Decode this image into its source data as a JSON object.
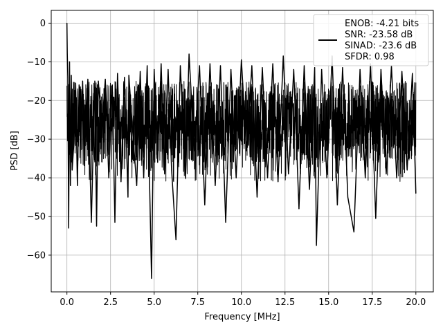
{
  "chart_data": {
    "type": "line",
    "title": "",
    "xlabel": "Frequency [MHz]",
    "ylabel": "PSD [dB]",
    "xlim": [
      -0.9,
      21.0
    ],
    "ylim": [
      -69.5,
      3.3
    ],
    "xticks": [
      0.0,
      2.5,
      5.0,
      7.5,
      10.0,
      12.5,
      15.0,
      17.5,
      20.0
    ],
    "xtick_labels": [
      "0.0",
      "2.5",
      "5.0",
      "7.5",
      "10.0",
      "12.5",
      "15.0",
      "17.5",
      "20.0"
    ],
    "yticks": [
      0,
      -10,
      -20,
      -30,
      -40,
      -50,
      -60
    ],
    "ytick_labels": [
      "0",
      "−10",
      "−20",
      "−30",
      "−40",
      "−50",
      "−60"
    ],
    "grid": true,
    "legend_position": "top-right",
    "line_color": "#000000",
    "series": [
      {
        "name": "ENOB: -4.21 bits\nSNR: -23.58 dB\nSINAD: -23.6 dB\nSFDR: 0.98",
        "legend_lines": [
          "ENOB: -4.21 bits",
          "SNR: -23.58 dB",
          "SINAD: -23.6 dB",
          "SFDR: 0.98"
        ],
        "x_range": [
          0.0,
          20.0
        ],
        "typical_range": [
          -36,
          -15
        ],
        "x": [
          0.0,
          0.02,
          0.05,
          0.1,
          0.15,
          0.2,
          0.25,
          0.3,
          0.4,
          0.5,
          0.6,
          0.7,
          0.8,
          0.9,
          1.0,
          1.2,
          1.4,
          1.6,
          1.7,
          1.8,
          2.0,
          2.2,
          2.4,
          2.6,
          2.75,
          2.9,
          3.1,
          3.3,
          3.5,
          3.55,
          3.8,
          4.0,
          4.2,
          4.4,
          4.6,
          4.85,
          5.0,
          5.2,
          5.4,
          5.6,
          5.8,
          6.0,
          6.25,
          6.5,
          6.8,
          7.0,
          7.3,
          7.6,
          7.9,
          8.2,
          8.5,
          8.8,
          9.1,
          9.4,
          9.7,
          10.0,
          10.3,
          10.6,
          10.9,
          11.2,
          11.5,
          11.8,
          12.1,
          12.4,
          12.7,
          13.0,
          13.3,
          13.6,
          13.9,
          14.2,
          14.3,
          14.6,
          14.9,
          15.2,
          15.5,
          15.8,
          16.1,
          16.45,
          16.8,
          17.1,
          17.4,
          17.7,
          18.0,
          18.3,
          18.6,
          18.9,
          19.2,
          19.5,
          19.8,
          20.0
        ],
        "y": [
          0.0,
          -8.0,
          -14.0,
          -53.0,
          -10.0,
          -42.0,
          -13.5,
          -38.0,
          -31.0,
          -15.5,
          -42.0,
          -16.0,
          -30.0,
          -15.0,
          -33.0,
          -14.5,
          -51.5,
          -15.0,
          -52.5,
          -15.0,
          -27.0,
          -14.5,
          -40.0,
          -16.0,
          -51.5,
          -13.0,
          -41.0,
          -14.0,
          -45.0,
          -13.5,
          -30.0,
          -42.0,
          -12.5,
          -40.0,
          -11.0,
          -66.0,
          -12.0,
          -36.0,
          -10.5,
          -39.0,
          -12.0,
          -38.0,
          -56.0,
          -11.0,
          -40.0,
          -8.0,
          -33.0,
          -11.0,
          -47.0,
          -10.5,
          -42.0,
          -11.0,
          -51.5,
          -12.0,
          -40.0,
          -9.5,
          -33.0,
          -11.0,
          -45.0,
          -11.5,
          -40.0,
          -10.5,
          -41.0,
          -8.5,
          -39.0,
          -12.0,
          -48.0,
          -11.0,
          -43.0,
          -11.5,
          -57.5,
          -12.0,
          -40.0,
          -8.5,
          -47.0,
          -11.5,
          -45.0,
          -54.0,
          -12.0,
          -40.0,
          -10.5,
          -50.5,
          -12.0,
          -39.0,
          -11.0,
          -40.0,
          -12.5,
          -38.0,
          -13.0,
          -44.0
        ]
      }
    ]
  }
}
